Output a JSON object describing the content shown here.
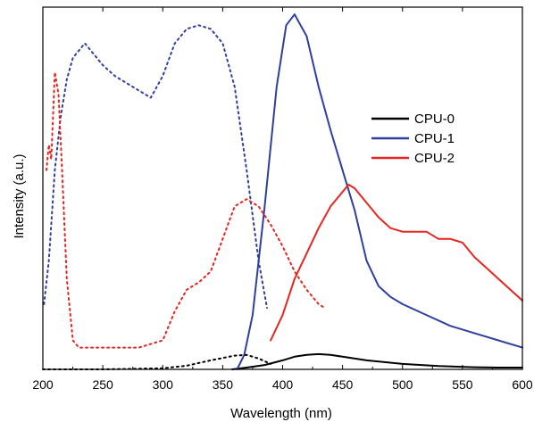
{
  "chart_data": {
    "type": "line",
    "xlabel": "Wavelength (nm)",
    "ylabel": "Intensity (a.u.)",
    "xlim": [
      200,
      600
    ],
    "ylim": [
      0,
      100
    ],
    "xticks": [
      200,
      250,
      300,
      350,
      400,
      450,
      500,
      550,
      600
    ],
    "legend_position": "top-right",
    "y_tick_labels_shown": false,
    "legend": [
      {
        "name": "CPU-0",
        "color": "#000000"
      },
      {
        "name": "CPU-1",
        "color": "#2e3f9e"
      },
      {
        "name": "CPU-2",
        "color": "#e52620"
      }
    ],
    "series": [
      {
        "name": "CPU-0",
        "role": "emission",
        "color": "#000000",
        "style": "solid",
        "x": [
          358,
          370,
          385,
          400,
          410,
          420,
          430,
          440,
          450,
          470,
          500,
          530,
          560,
          580,
          600
        ],
        "y": [
          0,
          0.5,
          1.2,
          2.5,
          3.5,
          4.0,
          4.2,
          4.0,
          3.5,
          2.5,
          1.5,
          0.9,
          0.6,
          0.5,
          0.5
        ]
      },
      {
        "name": "CPU-1",
        "role": "emission",
        "color": "#2e3f9e",
        "style": "solid",
        "x": [
          362,
          368,
          375,
          385,
          395,
          403,
          410,
          415,
          420,
          425,
          430,
          440,
          450,
          460,
          470,
          480,
          490,
          500,
          520,
          540,
          560,
          580,
          600
        ],
        "y": [
          0,
          4,
          15,
          45,
          78,
          95,
          98,
          95,
          92,
          85,
          78,
          66,
          55,
          44,
          30,
          23,
          20,
          18,
          15,
          12,
          10,
          8,
          6
        ]
      },
      {
        "name": "CPU-2",
        "role": "emission",
        "color": "#e52620",
        "style": "solid",
        "x": [
          390,
          400,
          410,
          420,
          430,
          440,
          450,
          455,
          460,
          470,
          480,
          490,
          500,
          510,
          520,
          530,
          540,
          550,
          560,
          570,
          580,
          590,
          600
        ],
        "y": [
          8,
          15,
          25,
          32,
          39,
          45,
          49,
          51,
          50,
          46,
          42,
          39,
          38,
          38,
          38,
          36,
          36,
          35,
          31,
          28,
          25,
          22,
          19
        ]
      },
      {
        "name": "CPU-0",
        "role": "excitation",
        "color": "#000000",
        "style": "dotted",
        "x": [
          200,
          250,
          300,
          320,
          340,
          360,
          370,
          380,
          390
        ],
        "y": [
          0,
          0,
          0.3,
          1,
          2.5,
          3.8,
          4.0,
          3.0,
          1.5
        ]
      },
      {
        "name": "CPU-1",
        "role": "excitation",
        "color": "#2e3f9e",
        "style": "dotted",
        "x": [
          201,
          205,
          210,
          215,
          220,
          225,
          230,
          235,
          240,
          250,
          260,
          270,
          280,
          290,
          300,
          310,
          320,
          330,
          340,
          350,
          360,
          370,
          380,
          387
        ],
        "y": [
          18,
          30,
          55,
          70,
          80,
          86,
          88,
          90,
          88,
          84,
          81,
          79,
          77,
          75,
          81,
          90,
          94,
          95,
          94,
          90,
          78,
          55,
          30,
          17
        ]
      },
      {
        "name": "CPU-2",
        "role": "excitation",
        "color": "#e52620",
        "style": "dotted",
        "x": [
          203,
          205,
          207,
          210,
          213,
          216,
          220,
          225,
          230,
          250,
          280,
          300,
          310,
          320,
          330,
          340,
          350,
          360,
          370,
          380,
          390,
          400,
          410,
          420,
          430,
          435
        ],
        "y": [
          55,
          62,
          58,
          82,
          76,
          55,
          25,
          8,
          6,
          6,
          6,
          8,
          16,
          22,
          24,
          27,
          36,
          45,
          47,
          45,
          40,
          34,
          27,
          22,
          18,
          17
        ]
      }
    ]
  }
}
